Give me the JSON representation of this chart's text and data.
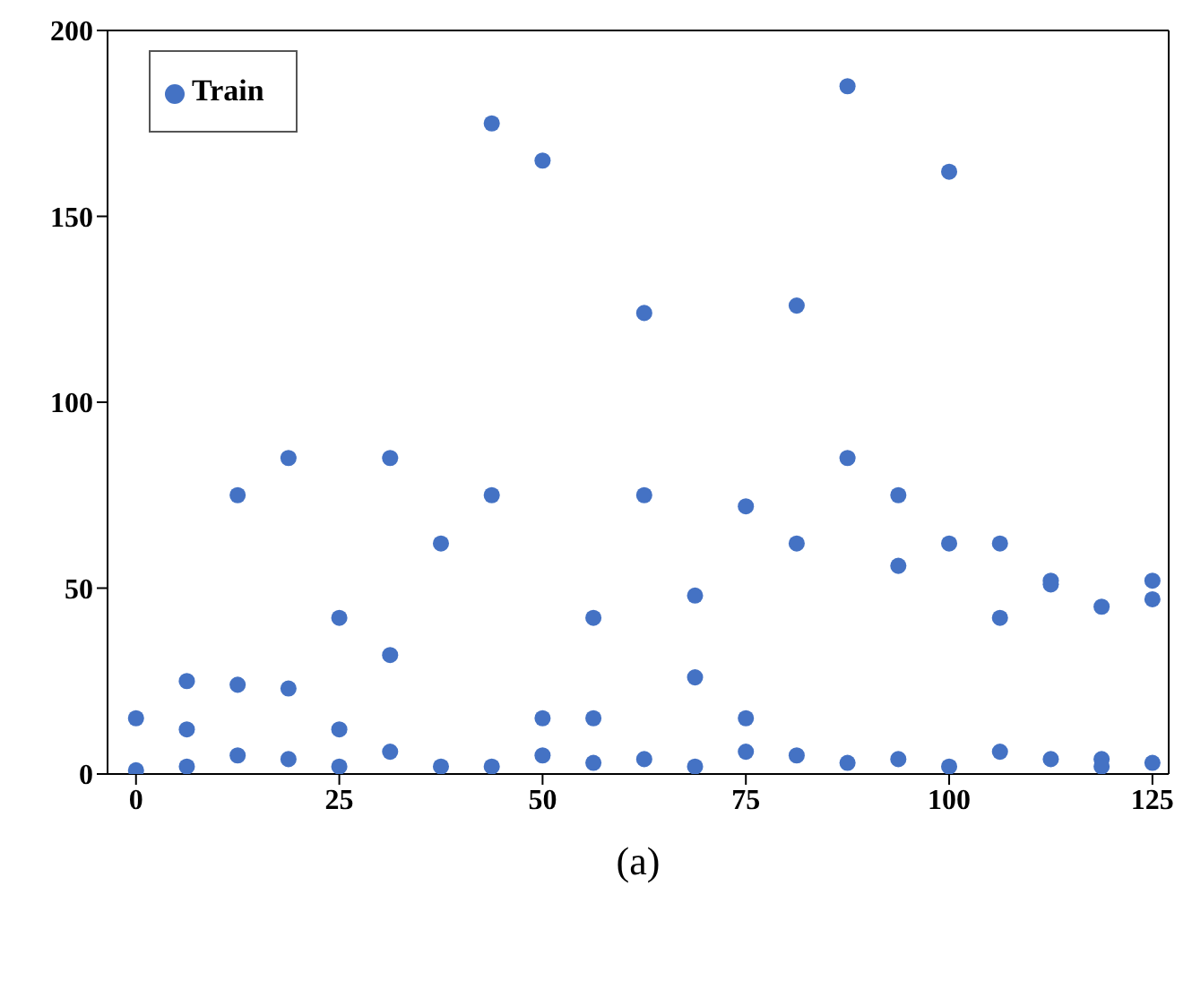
{
  "chart_data": {
    "type": "scatter",
    "xlabel": "(a)",
    "xlim": [
      -3.5,
      127
    ],
    "xticks": [
      0,
      25,
      50,
      75,
      100,
      125
    ],
    "ylim": [
      0,
      200
    ],
    "yticks": [
      0,
      50,
      100,
      150,
      200
    ],
    "legend": "top left",
    "marker": "circle",
    "series": [
      {
        "name": "Train",
        "color": "#4472c4",
        "x": [
          0,
          0,
          6.25,
          6.25,
          6.25,
          12.5,
          12.5,
          12.5,
          18.75,
          18.75,
          18.75,
          25,
          25,
          25,
          31.25,
          31.25,
          31.25,
          37.5,
          37.5,
          43.75,
          43.75,
          43.75,
          50,
          50,
          50,
          56.25,
          56.25,
          56.25,
          62.5,
          62.5,
          62.5,
          68.75,
          68.75,
          68.75,
          75,
          75,
          75,
          81.25,
          81.25,
          81.25,
          87.5,
          87.5,
          87.5,
          93.75,
          93.75,
          93.75,
          100,
          100,
          100,
          106.25,
          106.25,
          106.25,
          112.5,
          112.5,
          112.5,
          118.75,
          118.75,
          118.75,
          125,
          125,
          125
        ],
        "values": [
          15,
          1,
          25,
          12,
          2,
          75,
          24,
          5,
          85,
          23,
          4,
          42,
          12,
          2,
          85,
          32,
          6,
          62,
          2,
          175,
          75,
          2,
          165,
          15,
          5,
          42,
          15,
          3,
          124,
          75,
          4,
          48,
          26,
          2,
          72,
          15,
          6,
          126,
          62,
          5,
          185,
          85,
          3,
          75,
          56,
          4,
          162,
          62,
          2,
          62,
          42,
          6,
          52,
          51,
          4,
          45,
          4,
          2,
          52,
          47,
          3
        ]
      }
    ]
  }
}
